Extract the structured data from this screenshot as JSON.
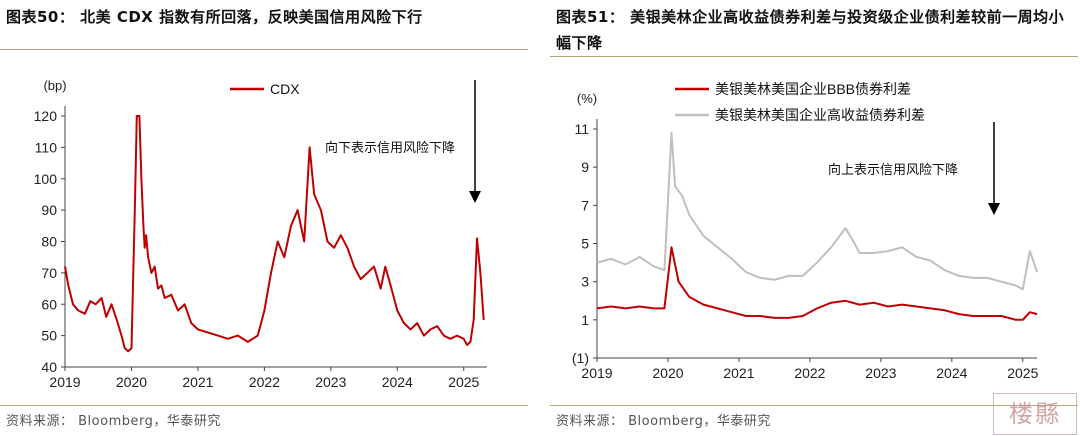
{
  "left": {
    "title": "图表50： 北美 CDX 指数有所回落，反映美国信用风险下行",
    "source": "资料来源： Bloomberg，华泰研究",
    "chart_data": {
      "type": "line",
      "title": "图表50： 北美 CDX 指数有所回落，反映美国信用风险下行",
      "unit_label": "(bp)",
      "xlabel": "",
      "ylabel": "",
      "x_ticks": [
        "2019",
        "2020",
        "2021",
        "2022",
        "2023",
        "2024",
        "2025"
      ],
      "y_ticks": [
        "40",
        "50",
        "60",
        "70",
        "80",
        "90",
        "100",
        "110",
        "120"
      ],
      "ylim": [
        40,
        120
      ],
      "xlim": [
        2019.0,
        2025.35
      ],
      "annotation": "向下表示信用风险下降",
      "legend_position": "top-center",
      "series": [
        {
          "name": "CDX",
          "color": "#c00000",
          "x": [
            2019.0,
            2019.05,
            2019.12,
            2019.2,
            2019.3,
            2019.38,
            2019.46,
            2019.55,
            2019.62,
            2019.7,
            2019.78,
            2019.85,
            2019.9,
            2019.95,
            2020.0,
            2020.05,
            2020.08,
            2020.12,
            2020.15,
            2020.18,
            2020.2,
            2020.22,
            2020.25,
            2020.3,
            2020.35,
            2020.4,
            2020.45,
            2020.5,
            2020.6,
            2020.7,
            2020.8,
            2020.9,
            2021.0,
            2021.15,
            2021.3,
            2021.45,
            2021.6,
            2021.75,
            2021.9,
            2022.0,
            2022.1,
            2022.2,
            2022.3,
            2022.4,
            2022.5,
            2022.6,
            2022.68,
            2022.75,
            2022.85,
            2022.95,
            2023.05,
            2023.15,
            2023.25,
            2023.35,
            2023.45,
            2023.55,
            2023.65,
            2023.75,
            2023.82,
            2023.9,
            2024.0,
            2024.1,
            2024.2,
            2024.3,
            2024.4,
            2024.5,
            2024.6,
            2024.7,
            2024.8,
            2024.9,
            2025.0,
            2025.05,
            2025.1,
            2025.15,
            2025.2,
            2025.25,
            2025.3
          ],
          "values": [
            72,
            66,
            60,
            58,
            57,
            61,
            60,
            62,
            56,
            60,
            55,
            50,
            46,
            45,
            46,
            90,
            120,
            120,
            100,
            85,
            78,
            82,
            75,
            70,
            72,
            65,
            66,
            62,
            63,
            58,
            60,
            54,
            52,
            51,
            50,
            49,
            50,
            48,
            50,
            58,
            70,
            80,
            75,
            85,
            90,
            80,
            110,
            95,
            90,
            80,
            78,
            82,
            78,
            72,
            68,
            70,
            72,
            65,
            72,
            66,
            58,
            54,
            52,
            54,
            50,
            52,
            53,
            50,
            49,
            50,
            49,
            47,
            48,
            55,
            81,
            70,
            55
          ]
        }
      ]
    }
  },
  "right": {
    "title": "图表51： 美银美林企业高收益债券利差与投资级企业债利差较前一周均小幅下降",
    "source": "资料来源： Bloomberg，华泰研究",
    "chart_data": {
      "type": "line",
      "title": "图表51： 美银美林企业高收益债券利差与投资级企业债利差较前一周均小幅下降",
      "unit_label": "(%)",
      "xlabel": "",
      "ylabel": "",
      "x_ticks": [
        "2019",
        "2020",
        "2021",
        "2022",
        "2023",
        "2024",
        "2025"
      ],
      "y_ticks": [
        "(1)",
        "1",
        "3",
        "5",
        "7",
        "9",
        "11"
      ],
      "ylim": [
        -1,
        11
      ],
      "xlim": [
        2019.0,
        2025.2
      ],
      "annotation": "向上表示信用风险下降",
      "legend_position": "top-left",
      "series": [
        {
          "name": "美银美林美国企业BBB债券利差",
          "color": "#c00000",
          "x": [
            2019.0,
            2019.2,
            2019.4,
            2019.6,
            2019.8,
            2019.95,
            2020.05,
            2020.15,
            2020.3,
            2020.5,
            2020.7,
            2020.9,
            2021.1,
            2021.3,
            2021.5,
            2021.7,
            2021.9,
            2022.1,
            2022.3,
            2022.5,
            2022.7,
            2022.9,
            2023.1,
            2023.3,
            2023.5,
            2023.7,
            2023.9,
            2024.1,
            2024.3,
            2024.5,
            2024.7,
            2024.9,
            2025.0,
            2025.1,
            2025.2
          ],
          "values": [
            1.6,
            1.7,
            1.6,
            1.7,
            1.6,
            1.6,
            4.8,
            3.0,
            2.2,
            1.8,
            1.6,
            1.4,
            1.2,
            1.2,
            1.1,
            1.1,
            1.2,
            1.6,
            1.9,
            2.0,
            1.8,
            1.9,
            1.7,
            1.8,
            1.7,
            1.6,
            1.5,
            1.3,
            1.2,
            1.2,
            1.2,
            1.0,
            1.0,
            1.4,
            1.3
          ]
        },
        {
          "name": "美银美林美国企业高收益债券利差",
          "color": "#bfbfbf",
          "x": [
            2019.0,
            2019.2,
            2019.4,
            2019.6,
            2019.8,
            2019.95,
            2020.05,
            2020.1,
            2020.2,
            2020.3,
            2020.5,
            2020.7,
            2020.9,
            2021.1,
            2021.3,
            2021.5,
            2021.7,
            2021.9,
            2022.1,
            2022.3,
            2022.5,
            2022.6,
            2022.7,
            2022.9,
            2023.1,
            2023.3,
            2023.5,
            2023.7,
            2023.9,
            2024.1,
            2024.3,
            2024.5,
            2024.7,
            2024.9,
            2025.0,
            2025.1,
            2025.2
          ],
          "values": [
            4.0,
            4.2,
            3.9,
            4.3,
            3.8,
            3.6,
            10.8,
            8.0,
            7.5,
            6.5,
            5.4,
            4.8,
            4.2,
            3.5,
            3.2,
            3.1,
            3.3,
            3.3,
            4.0,
            4.8,
            5.8,
            5.2,
            4.5,
            4.5,
            4.6,
            4.8,
            4.3,
            4.1,
            3.6,
            3.3,
            3.2,
            3.2,
            3.0,
            2.8,
            2.6,
            4.6,
            3.5
          ]
        }
      ]
    }
  },
  "logo_text": "楼縣"
}
